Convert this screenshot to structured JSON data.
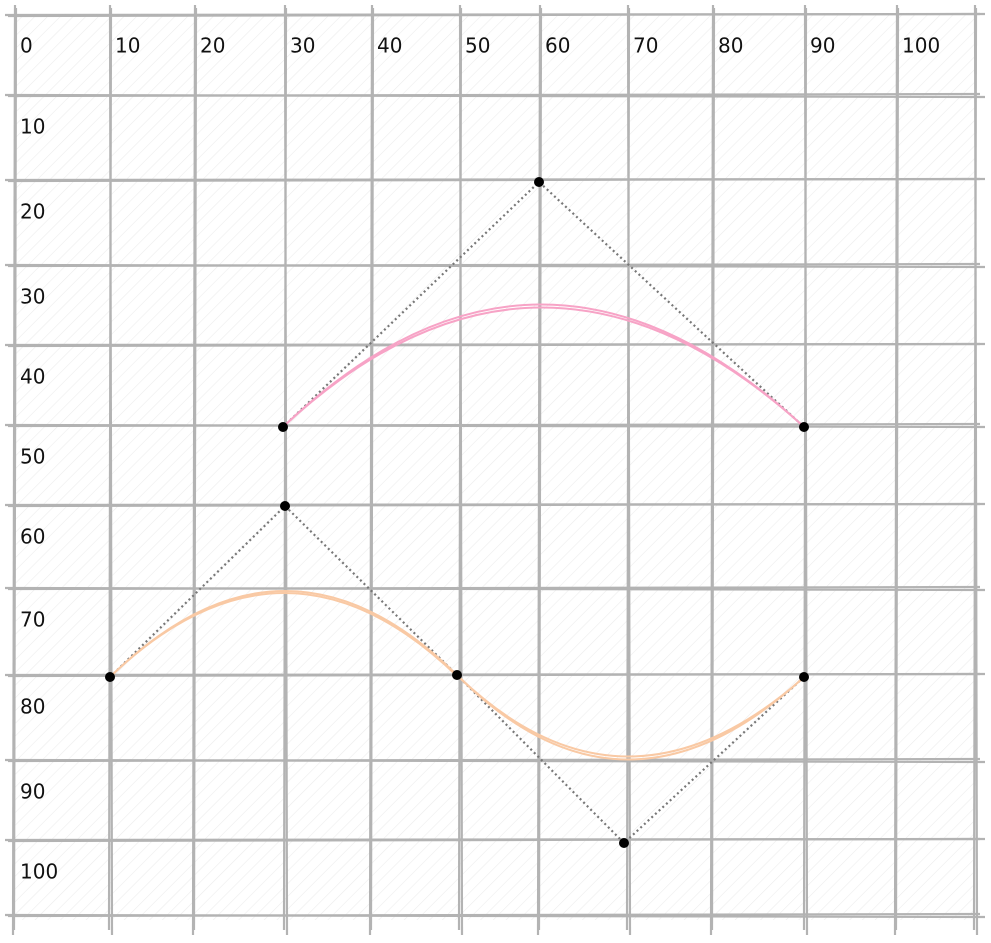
{
  "x_labels": [
    "0",
    "10",
    "20",
    "30",
    "40",
    "50",
    "60",
    "70",
    "80",
    "90",
    "100"
  ],
  "y_labels": [
    "10",
    "20",
    "30",
    "40",
    "50",
    "60",
    "70",
    "80",
    "90",
    "100"
  ]
}
